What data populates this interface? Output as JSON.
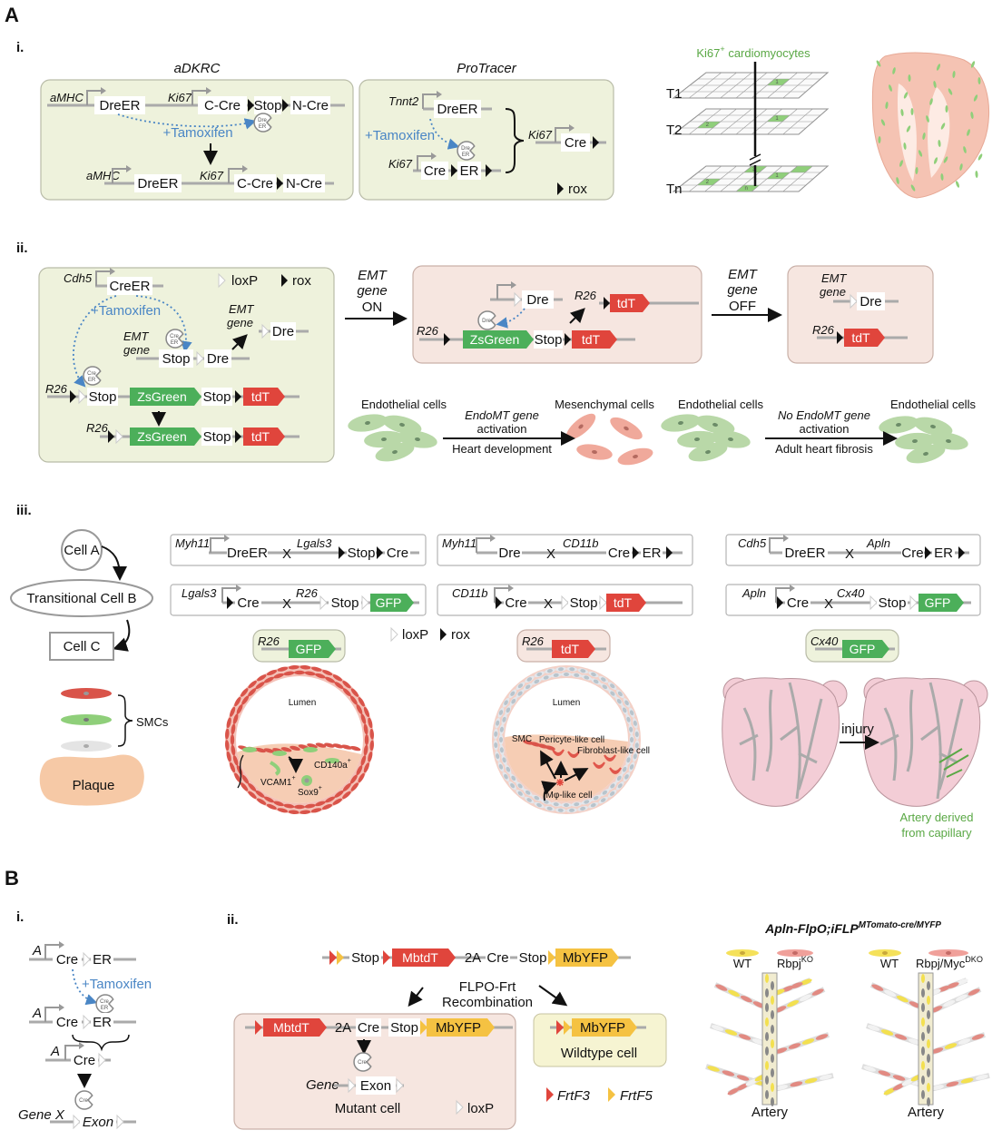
{
  "panels": {
    "A": "A",
    "B": "B"
  },
  "labels": {
    "i": "i.",
    "ii": "ii.",
    "iii": "iii."
  },
  "g": {
    "DreER": "DreER",
    "Dre": "Dre",
    "CreER": "CreER",
    "Cre": "Cre",
    "ER": "ER",
    "Stop": "Stop",
    "CCre": "C-Cre",
    "NCre": "N-Cre",
    "tdT": "tdT",
    "ZsGreen": "ZsGreen",
    "GFP": "GFP",
    "MbtdT": "MbtdT",
    "MbYFP": "MbYFP",
    "twoA": "2A",
    "Exon": "Exon",
    "x": "X"
  },
  "promoters": {
    "aMHC": "aMHC",
    "Ki67": "Ki67",
    "Tnnt2": "Tnnt2",
    "Cdh5": "Cdh5",
    "R26": "R26",
    "Myh11": "Myh11",
    "Lgals3": "Lgals3",
    "CD11b": "CD11b",
    "Apln": "Apln",
    "Cx40": "Cx40",
    "A": "A",
    "Gene": "Gene",
    "GeneX": "Gene X",
    "EMT": "EMT",
    "gene": "gene"
  },
  "proteins": {
    "Dre": "Dre",
    "ER": "ER",
    "Cre": "Cre"
  },
  "legend": {
    "loxP": "loxP",
    "rox": "rox",
    "FrtF3": "FrtF3",
    "FrtF5": "FrtF5"
  },
  "tamoxifen": "+Tamoxifen",
  "A_i": {
    "adkrc": "aDKRC",
    "protracer": "ProTracer",
    "ki67": "Ki67",
    "sup": "+",
    "cm": " cardiomyocytes",
    "T1": "T1",
    "T2": "T2",
    "Tn": "Tn",
    "cellnums": [
      "1",
      "2",
      "1",
      "3",
      "1",
      "2",
      "n"
    ]
  },
  "A_ii": {
    "emt": "EMT",
    "gene": "gene",
    "on": "ON",
    "off": "OFF",
    "endo": "Endothelial cells",
    "mes": "Mesenchymal cells",
    "endomt": "EndoMT gene",
    "activation": "activation",
    "heart_dev": "Heart development",
    "no_endomt": "No EndoMT gene",
    "fibrosis": "Adult heart fibrosis"
  },
  "A_iii": {
    "cellA": "Cell A",
    "cellB": "Transitional Cell B",
    "cellC": "Cell C",
    "smcs": "SMCs",
    "plaque": "Plaque",
    "lumen": "Lumen",
    "vcam": "VCAM1",
    "sox9": "Sox9",
    "cd140": "CD140a",
    "sup": "+",
    "smc": "SMC",
    "pericyte": "Pericyte-like cell",
    "fibro": "Fibroblast-like cell",
    "mphi": "Mφ-like cell",
    "injury": "injury",
    "artery_derived": "Artery derived",
    "from_cap": "from capillary"
  },
  "B": {
    "flpo": "FLPO-",
    "frt": "Frt",
    "recomb": "Recombination",
    "mutant": "Mutant cell",
    "wildtype": "Wildtype cell",
    "title_main": "Apln-FlpO;iFLP",
    "title_sup": "MTomato-cre/MYFP",
    "wt": "WT",
    "rbpj": "Rbpj",
    "ko": "KO",
    "rbpjmyc": "Rbpj/Myc",
    "dko": "DKO",
    "artery": "Artery"
  },
  "colors": {
    "green": "#4caf5a",
    "red": "#e0453c",
    "yellow": "#f5c242",
    "blue": "#4a86c5",
    "panel_green": "#eef2dc",
    "panel_pink": "#f6e6e0",
    "artery_green": "#5aa845"
  }
}
